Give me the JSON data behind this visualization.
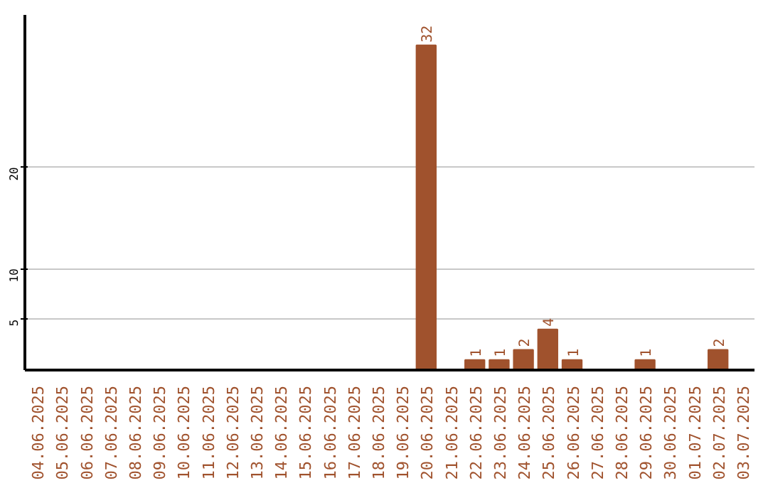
{
  "chart_data": {
    "type": "bar",
    "categories": [
      "04.06.2025",
      "05.06.2025",
      "06.06.2025",
      "07.06.2025",
      "08.06.2025",
      "09.06.2025",
      "10.06.2025",
      "11.06.2025",
      "12.06.2025",
      "13.06.2025",
      "14.06.2025",
      "15.06.2025",
      "16.06.2025",
      "17.06.2025",
      "18.06.2025",
      "19.06.2025",
      "20.06.2025",
      "21.06.2025",
      "22.06.2025",
      "23.06.2025",
      "24.06.2025",
      "25.06.2025",
      "26.06.2025",
      "27.06.2025",
      "28.06.2025",
      "29.06.2025",
      "30.06.2025",
      "01.07.2025",
      "02.07.2025",
      "03.07.2025"
    ],
    "values": [
      0,
      0,
      0,
      0,
      0,
      0,
      0,
      0,
      0,
      0,
      0,
      0,
      0,
      0,
      0,
      0,
      32,
      0,
      1,
      1,
      2,
      4,
      1,
      0,
      0,
      1,
      0,
      0,
      2,
      0
    ],
    "value_labels": [
      null,
      null,
      null,
      null,
      null,
      null,
      null,
      null,
      null,
      null,
      null,
      null,
      null,
      null,
      null,
      null,
      "32",
      null,
      "1",
      "1",
      "2",
      "4",
      "1",
      null,
      null,
      "1",
      null,
      null,
      "2",
      null
    ],
    "color": "#a0522d",
    "ylim": [
      0,
      35
    ],
    "yticks": [
      5,
      10,
      20
    ],
    "grid": "y"
  }
}
